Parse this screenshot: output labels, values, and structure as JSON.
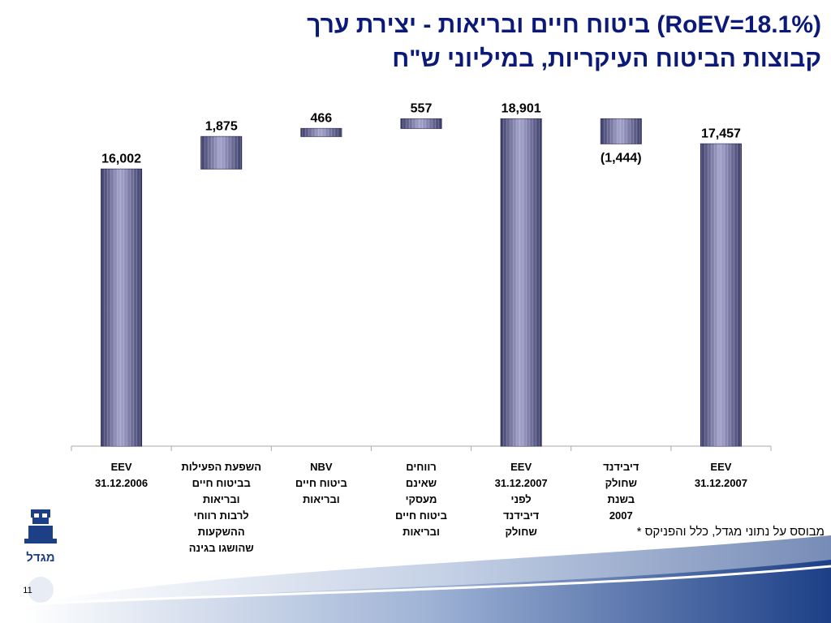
{
  "title": [
    "ביטוח חיים ובריאות - יצירת ערך (RoEV=18.1%)",
    "קבוצות הביטוח העיקריות, במיליוני ש\"ח"
  ],
  "footnote": "* מבוסס על נתוני מגדל, כלל והפניקס",
  "page_number": "11",
  "logo_text": "מגדל",
  "chart_data": {
    "type": "waterfall",
    "categories": [
      [
        "EEV",
        "31.12.2006"
      ],
      [
        "השפעת הפעילות",
        "בביטוח חיים",
        "ובריאות",
        "לרבות רווחי",
        "ההשקעות",
        "שהושגו בגינה"
      ],
      [
        "NBV",
        "ביטוח חיים",
        "ובריאות"
      ],
      [
        "רווחים",
        "שאינם",
        "מעסקי",
        "ביטוח חיים",
        "ובריאות"
      ],
      [
        "EEV",
        "31.12.2007",
        "לפני",
        "דיבידנד",
        "שחולק"
      ],
      [
        "דיבידנד",
        "שחולק",
        "בשנת",
        "2007"
      ],
      [
        "EEV",
        "31.12.2007"
      ]
    ],
    "values": [
      16002,
      1875,
      466,
      557,
      18901,
      -1444,
      17457
    ],
    "value_labels": [
      "16,002",
      "1,875",
      "466",
      "557",
      "18,901",
      "(1,444)",
      "17,457"
    ],
    "totals": [
      0,
      4,
      6
    ],
    "color": "#6e6e9e",
    "ylim": [
      0,
      20000
    ]
  }
}
